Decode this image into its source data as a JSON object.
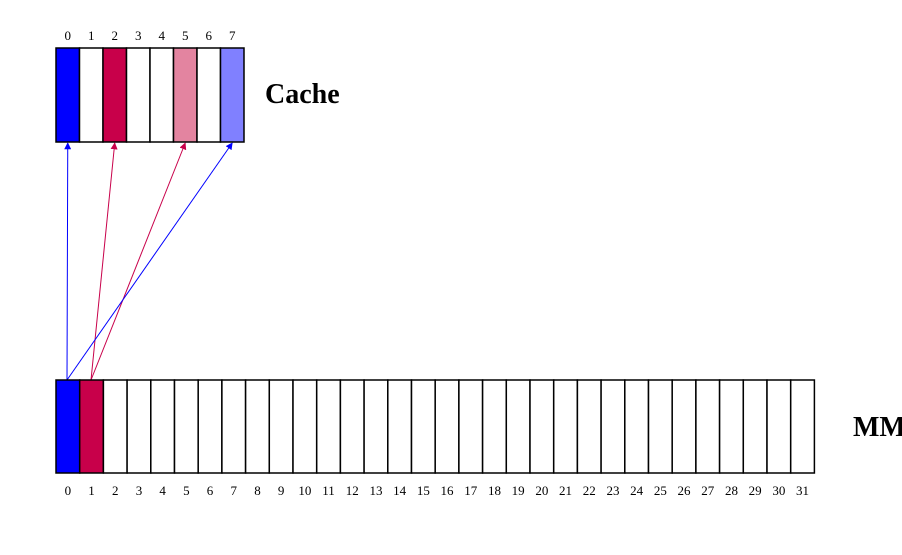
{
  "cache": {
    "label": "Cache",
    "slot_labels": [
      "0",
      "1",
      "2",
      "3",
      "4",
      "5",
      "6",
      "7"
    ],
    "slot_colors": [
      "#0000ff",
      "#ffffff",
      "#c8004a",
      "#ffffff",
      "#ffffff",
      "#e384a0",
      "#ffffff",
      "#8080ff"
    ]
  },
  "memory": {
    "label": "MM",
    "block_labels": [
      "0",
      "1",
      "2",
      "3",
      "4",
      "5",
      "6",
      "7",
      "8",
      "9",
      "10",
      "11",
      "12",
      "13",
      "14",
      "15",
      "16",
      "17",
      "18",
      "19",
      "20",
      "21",
      "22",
      "23",
      "24",
      "25",
      "26",
      "27",
      "28",
      "29",
      "30",
      "31"
    ],
    "block_colors": {
      "0": "#0000ff",
      "1": "#c8004a"
    }
  },
  "mappings": [
    {
      "from_block": 0,
      "to_slot": 0,
      "color": "#0000ff"
    },
    {
      "from_block": 1,
      "to_slot": 2,
      "color": "#c8004a"
    },
    {
      "from_block": 1,
      "to_slot": 5,
      "color": "#c8004a"
    },
    {
      "from_block": 0,
      "to_slot": 7,
      "color": "#0000ff"
    }
  ]
}
